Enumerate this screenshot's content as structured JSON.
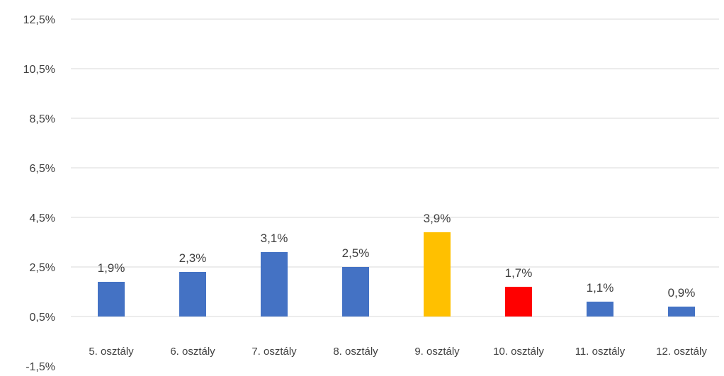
{
  "chart_data": {
    "type": "bar",
    "categories": [
      "5. osztály",
      "6. osztály",
      "7. osztály",
      "8. osztály",
      "9. osztály",
      "10. osztály",
      "11. osztály",
      "12. osztály"
    ],
    "values": [
      1.9,
      2.3,
      3.1,
      2.5,
      3.9,
      1.7,
      1.1,
      0.9
    ],
    "data_labels": [
      "1,9%",
      "2,3%",
      "3,1%",
      "2,5%",
      "3,9%",
      "1,7%",
      "1,1%",
      "0,9%"
    ],
    "bar_colors": [
      "#4472c4",
      "#4472c4",
      "#4472c4",
      "#4472c4",
      "#ffc000",
      "#ff0000",
      "#4472c4",
      "#4472c4"
    ],
    "ylim": [
      -1.5,
      12.5
    ],
    "y_ticks": [
      12.5,
      10.5,
      8.5,
      6.5,
      4.5,
      2.5,
      0.5,
      -1.5
    ],
    "y_tick_labels": [
      "12,5%",
      "10,5%",
      "8,5%",
      "6,5%",
      "4,5%",
      "2,5%",
      "0,5%",
      "-1,5%"
    ],
    "grid": true,
    "legend": "none"
  }
}
